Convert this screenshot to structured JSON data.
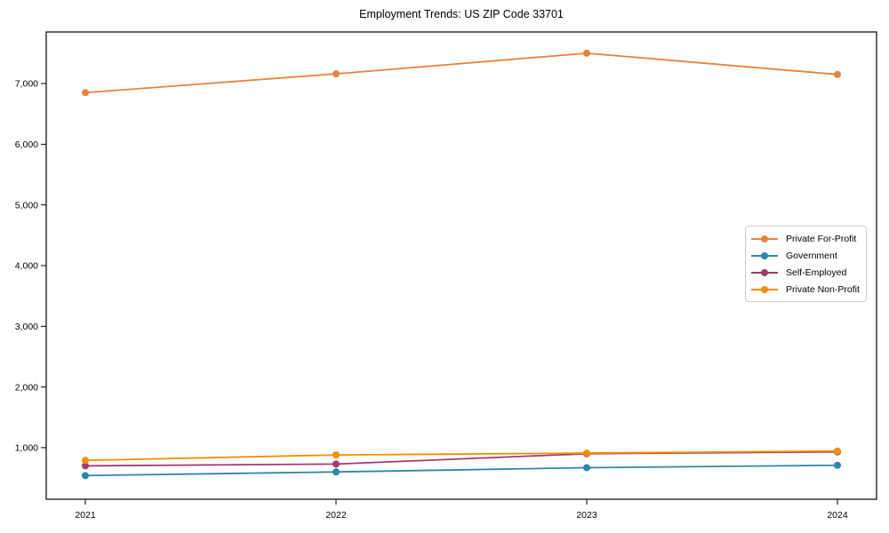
{
  "page": {
    "background": "#ffffff"
  },
  "chart_data": {
    "type": "line",
    "title": "Employment Trends: US ZIP Code 33701",
    "categories": [
      "2021",
      "2022",
      "2023",
      "2024"
    ],
    "series": [
      {
        "name": "Private For-Profit",
        "color": "#E8823C",
        "values": [
          6850,
          7160,
          7500,
          7150
        ]
      },
      {
        "name": "Government",
        "color": "#2E86AB",
        "values": [
          540,
          600,
          670,
          710
        ]
      },
      {
        "name": "Self-Employed",
        "color": "#A23B72",
        "values": [
          700,
          730,
          900,
          930
        ]
      },
      {
        "name": "Private Non-Profit",
        "color": "#F18F01",
        "values": [
          790,
          880,
          910,
          945
        ]
      }
    ],
    "xlabel": "",
    "ylabel": "",
    "ylim": [
      150,
      7850
    ],
    "yticks": [
      1000,
      2000,
      3000,
      4000,
      5000,
      6000,
      7000
    ],
    "grid": false,
    "legend_position": "right-middle",
    "marker": "circle",
    "axis_color": "#000000"
  }
}
